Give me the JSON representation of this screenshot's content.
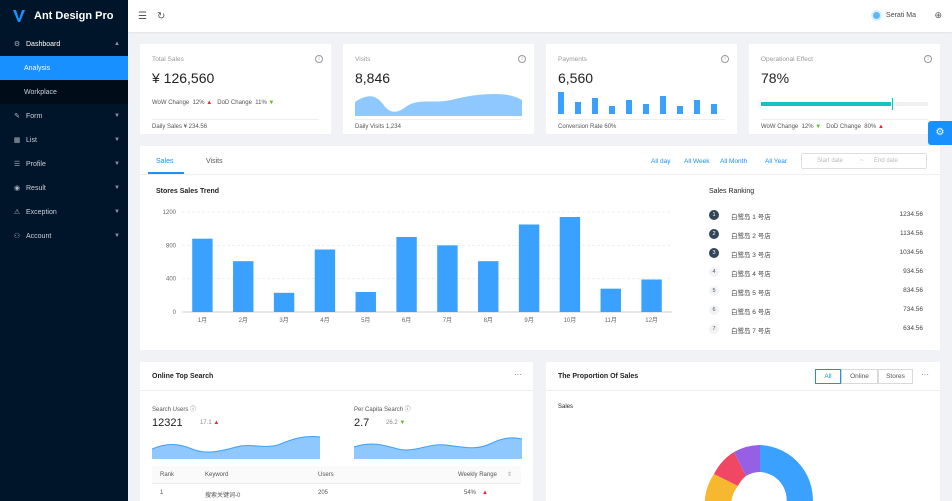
{
  "app": {
    "title": "Ant Design Pro"
  },
  "menu": {
    "dashboard": "Dashboard",
    "analysis": "Analysis",
    "workplace": "Workplace",
    "form": "Form",
    "list": "List",
    "profile": "Profile",
    "result": "Result",
    "exception": "Exception",
    "account": "Account"
  },
  "header": {
    "user": "Serati Ma"
  },
  "stats": {
    "total_sales": {
      "label": "Total Sales",
      "value": "¥ 126,560",
      "wow": "WoW Change",
      "wow_val": "12%",
      "dod": "DoD Change",
      "dod_val": "11%",
      "footer": "Daily Sales ¥ 234.56"
    },
    "visits": {
      "label": "Visits",
      "value": "8,846",
      "footer": "Daily Visits 1,234"
    },
    "payments": {
      "label": "Payments",
      "value": "6,560",
      "footer": "Conversion Rate 60%"
    },
    "effect": {
      "label": "Operational Effect",
      "value": "78%",
      "progress": 78,
      "wow": "WoW Change",
      "wow_val": "12%",
      "dod": "DoD Change",
      "dod_val": "80%"
    }
  },
  "sales_card": {
    "tabs": [
      "Sales",
      "Visits"
    ],
    "ranges": [
      "All day",
      "All Week",
      "All Month",
      "All Year"
    ],
    "start_placeholder": "Start date",
    "sep": "~",
    "end_placeholder": "End date",
    "trend_title": "Stores Sales Trend",
    "ranking_title": "Sales Ranking",
    "ranking": [
      {
        "rank": "1",
        "name": "白鹭岛 1 号店",
        "value": "1234.56"
      },
      {
        "rank": "2",
        "name": "白鹭岛 2 号店",
        "value": "1134.56"
      },
      {
        "rank": "3",
        "name": "白鹭岛 3 号店",
        "value": "1034.56"
      },
      {
        "rank": "4",
        "name": "白鹭岛 4 号店",
        "value": "934.56"
      },
      {
        "rank": "5",
        "name": "白鹭岛 5 号店",
        "value": "834.56"
      },
      {
        "rank": "6",
        "name": "白鹭岛 6 号店",
        "value": "734.56"
      },
      {
        "rank": "7",
        "name": "白鹭岛 7 号店",
        "value": "634.56"
      }
    ]
  },
  "chart_data": {
    "type": "bar",
    "categories": [
      "1月",
      "2月",
      "3月",
      "4月",
      "5月",
      "6月",
      "7月",
      "8月",
      "9月",
      "10月",
      "11月",
      "12月"
    ],
    "values": [
      880,
      610,
      230,
      750,
      240,
      900,
      800,
      610,
      1050,
      1140,
      280,
      390
    ],
    "ylim": [
      0,
      1200
    ],
    "yticks": [
      "0",
      "400",
      "800",
      "1200"
    ],
    "color": "#3ba1ff"
  },
  "search": {
    "title": "Online Top Search",
    "more": "···",
    "users_label": "Search Users",
    "users_value": "12321",
    "users_change": "17.1",
    "percap_label": "Per Capita Search",
    "percap_value": "2.7",
    "percap_change": "26.2",
    "headers": [
      "Rank",
      "Keyword",
      "Users",
      "Weekly Range"
    ],
    "row": {
      "rank": "1",
      "keyword": "搜索关键词-0",
      "users": "205",
      "range": "54%"
    }
  },
  "proportion": {
    "title": "The Proportion Of Sales",
    "segments": [
      "All",
      "Online",
      "Stores"
    ],
    "more": "···",
    "subtitle": "Sales",
    "colors": [
      "#3ba1ff",
      "#f5b82e",
      "#f04864",
      "#975fe4"
    ]
  }
}
